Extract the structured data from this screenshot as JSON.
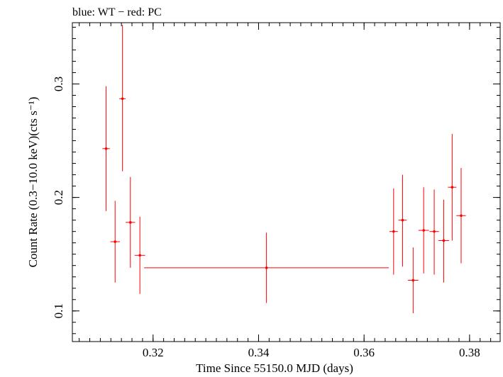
{
  "chart_data": {
    "type": "scatter",
    "title": "blue: WT − red: PC",
    "xlabel": "Time Since 55150.0 MJD (days)",
    "ylabel": "Count Rate (0.3−10.0 keV)(cts s⁻¹)",
    "xlim": [
      0.3047,
      0.3858
    ],
    "ylim": [
      0.073,
      0.354
    ],
    "x_ticks": [
      {
        "value": 0.32,
        "label": "0.32"
      },
      {
        "value": 0.34,
        "label": "0.34"
      },
      {
        "value": 0.36,
        "label": "0.36"
      },
      {
        "value": 0.38,
        "label": "0.38"
      }
    ],
    "y_ticks": [
      {
        "value": 0.1,
        "label": "0.1"
      },
      {
        "value": 0.2,
        "label": "0.2"
      },
      {
        "value": 0.3,
        "label": "0.3"
      }
    ],
    "y_minor_step": 0.01,
    "x_minor_step": 0.002,
    "grid": false,
    "color": "#ff0000",
    "series": [
      {
        "mode": "PC",
        "points": [
          {
            "x": 0.3111,
            "xerr": 0.0007,
            "y": 0.243,
            "yerr_low": 0.055,
            "yerr_high": 0.055
          },
          {
            "x": 0.3128,
            "xerr": 0.0009,
            "y": 0.161,
            "yerr_low": 0.036,
            "yerr_high": 0.036
          },
          {
            "x": 0.3142,
            "xerr": 0.0006,
            "y": 0.287,
            "yerr_low": 0.064,
            "yerr_high": 0.065
          },
          {
            "x": 0.3157,
            "xerr": 0.0009,
            "y": 0.178,
            "yerr_low": 0.04,
            "yerr_high": 0.04
          },
          {
            "x": 0.3175,
            "xerr": 0.001,
            "y": 0.149,
            "yerr_low": 0.034,
            "yerr_high": 0.034
          },
          {
            "x": 0.3415,
            "xerr": 0.0232,
            "y": 0.138,
            "yerr_low": 0.031,
            "yerr_high": 0.031
          },
          {
            "x": 0.3656,
            "xerr": 0.0008,
            "y": 0.17,
            "yerr_low": 0.038,
            "yerr_high": 0.038
          },
          {
            "x": 0.3673,
            "xerr": 0.0008,
            "y": 0.18,
            "yerr_low": 0.041,
            "yerr_high": 0.04
          },
          {
            "x": 0.3693,
            "xerr": 0.001,
            "y": 0.127,
            "yerr_low": 0.029,
            "yerr_high": 0.029
          },
          {
            "x": 0.3713,
            "xerr": 0.001,
            "y": 0.171,
            "yerr_low": 0.038,
            "yerr_high": 0.038
          },
          {
            "x": 0.3733,
            "xerr": 0.0009,
            "y": 0.17,
            "yerr_low": 0.038,
            "yerr_high": 0.037
          },
          {
            "x": 0.3751,
            "xerr": 0.001,
            "y": 0.162,
            "yerr_low": 0.037,
            "yerr_high": 0.036
          },
          {
            "x": 0.3767,
            "xerr": 0.0008,
            "y": 0.209,
            "yerr_low": 0.047,
            "yerr_high": 0.047
          },
          {
            "x": 0.3784,
            "xerr": 0.0009,
            "y": 0.184,
            "yerr_low": 0.042,
            "yerr_high": 0.042
          }
        ]
      }
    ]
  }
}
